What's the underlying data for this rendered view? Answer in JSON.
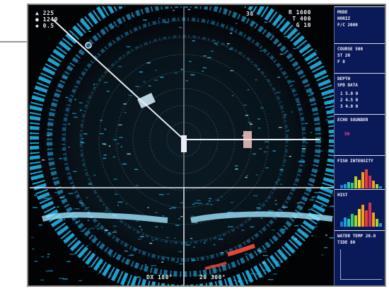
{
  "ui": {
    "top_left_lines": [
      "▲ 225",
      "● 1240",
      "◆ 0.5"
    ],
    "top_mid_label": "38",
    "top_right_lines": [
      "R 1600",
      "T 400",
      "G 10"
    ],
    "bottom_left_label": "DX  180°",
    "bottom_right_label": "20 300°",
    "colors": {
      "background": "#05070b",
      "echo_main": "#1eb4e8",
      "echo_light": "#9fe6ff",
      "echo_hot": "#ff4b3a",
      "panel": "#0a1a58",
      "line": "#e8eef4"
    }
  },
  "panel": {
    "sections": [
      {
        "lines": [
          "MODE",
          "HORIZ",
          "F/C  2000"
        ]
      },
      {
        "lines": [
          "COURSE  500",
          "      ST  20",
          "      F  8"
        ]
      },
      {
        "lines": [
          "DEPTH",
          "SPD  DATA",
          " 1  5.0    0",
          " 2  4.5    0",
          " 3  4.0    0"
        ]
      },
      {
        "lines": [
          "ECHO  SOUNDER",
          "  50"
        ]
      },
      {
        "lines": [
          "FISH  INTENSITY"
        ]
      },
      {
        "lines": [
          "HIST"
        ]
      },
      {
        "lines": [
          "WATER  TEMP  20.0",
          "TIDE        80"
        ]
      },
      {
        "lines": []
      }
    ],
    "histograms": [
      {
        "levels": [
          0.15,
          0.2,
          0.3,
          0.25,
          0.55,
          0.4,
          0.75,
          0.9,
          0.6,
          0.35,
          0.2,
          0.1
        ],
        "colors": [
          "#1d7bd6",
          "#1f9be0",
          "#22c7b6",
          "#35c96a",
          "#a6d62f",
          "#f1d62a",
          "#f59a23",
          "#ef3d2f",
          "#d22f54",
          "#f59a23",
          "#a6d62f",
          "#1f9be0"
        ]
      },
      {
        "levels": [
          0.2,
          0.35,
          0.3,
          0.5,
          0.45,
          0.7,
          0.85,
          0.65,
          0.95,
          0.55,
          0.3,
          0.15
        ],
        "colors": [
          "#1d7bd6",
          "#1f9be0",
          "#22c7b6",
          "#35c96a",
          "#a6d62f",
          "#f1d62a",
          "#f59a23",
          "#ef3d2f",
          "#d22f54",
          "#f59a23",
          "#a6d62f",
          "#1f9be0"
        ]
      }
    ]
  }
}
